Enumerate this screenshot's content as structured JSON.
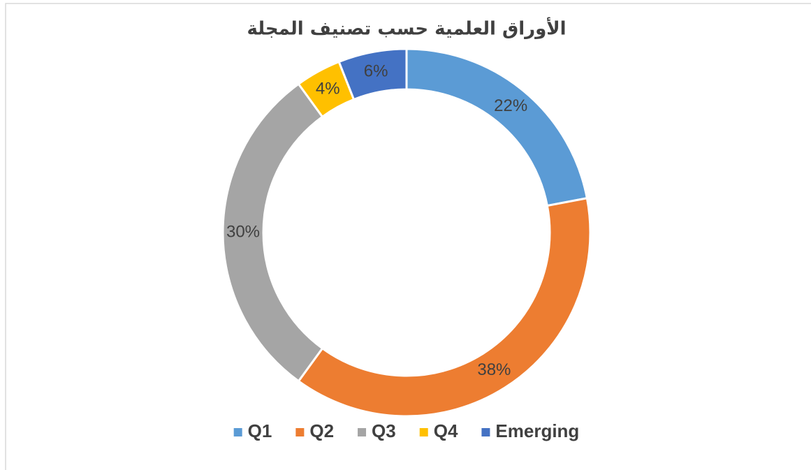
{
  "chart_data": {
    "type": "donut",
    "title": "الأوراق العلمية حسب تصنيف المجلة",
    "categories": [
      "Q1",
      "Q2",
      "Q3",
      "Q4",
      "Emerging"
    ],
    "values": [
      22,
      38,
      30,
      4,
      6
    ],
    "value_labels": [
      "22%",
      "38%",
      "30%",
      "4%",
      "6%"
    ],
    "colors": [
      "#5b9bd5",
      "#ed7d31",
      "#a5a5a5",
      "#ffc000",
      "#4472c4"
    ],
    "legend": "bottom"
  }
}
